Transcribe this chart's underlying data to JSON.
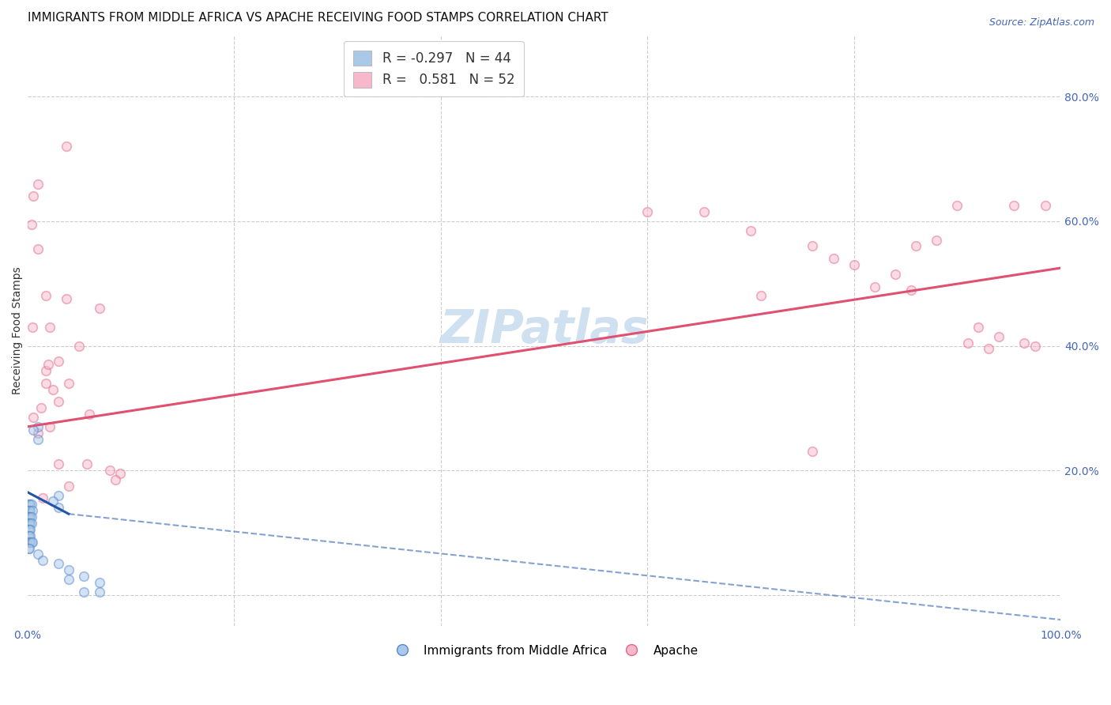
{
  "title": "IMMIGRANTS FROM MIDDLE AFRICA VS APACHE RECEIVING FOOD STAMPS CORRELATION CHART",
  "source": "Source: ZipAtlas.com",
  "ylabel": "Receiving Food Stamps",
  "watermark": "ZIPatlas",
  "xlim": [
    0.0,
    1.0
  ],
  "ylim": [
    -0.05,
    0.9
  ],
  "xtick_vals": [
    0.0,
    0.2,
    0.4,
    0.6,
    0.8,
    1.0
  ],
  "xtick_labels": [
    "0.0%",
    "",
    "",
    "",
    "",
    "100.0%"
  ],
  "ytick_vals": [
    0.0,
    0.2,
    0.4,
    0.6,
    0.8
  ],
  "ytick_labels": [
    "",
    "20.0%",
    "40.0%",
    "60.0%",
    "80.0%"
  ],
  "blue_scatter": [
    [
      0.001,
      0.145
    ],
    [
      0.002,
      0.145
    ],
    [
      0.003,
      0.145
    ],
    [
      0.004,
      0.145
    ],
    [
      0.001,
      0.135
    ],
    [
      0.002,
      0.135
    ],
    [
      0.003,
      0.135
    ],
    [
      0.005,
      0.135
    ],
    [
      0.001,
      0.125
    ],
    [
      0.002,
      0.125
    ],
    [
      0.003,
      0.125
    ],
    [
      0.004,
      0.125
    ],
    [
      0.001,
      0.115
    ],
    [
      0.002,
      0.115
    ],
    [
      0.003,
      0.115
    ],
    [
      0.004,
      0.115
    ],
    [
      0.001,
      0.105
    ],
    [
      0.002,
      0.105
    ],
    [
      0.003,
      0.105
    ],
    [
      0.001,
      0.095
    ],
    [
      0.002,
      0.095
    ],
    [
      0.003,
      0.095
    ],
    [
      0.001,
      0.085
    ],
    [
      0.002,
      0.085
    ],
    [
      0.003,
      0.085
    ],
    [
      0.004,
      0.085
    ],
    [
      0.005,
      0.085
    ],
    [
      0.001,
      0.075
    ],
    [
      0.002,
      0.075
    ],
    [
      0.01,
      0.27
    ],
    [
      0.01,
      0.25
    ],
    [
      0.006,
      0.265
    ],
    [
      0.03,
      0.16
    ],
    [
      0.03,
      0.14
    ],
    [
      0.025,
      0.15
    ],
    [
      0.01,
      0.065
    ],
    [
      0.015,
      0.055
    ],
    [
      0.03,
      0.05
    ],
    [
      0.04,
      0.04
    ],
    [
      0.055,
      0.03
    ],
    [
      0.07,
      0.02
    ],
    [
      0.04,
      0.025
    ],
    [
      0.055,
      0.005
    ],
    [
      0.07,
      0.005
    ]
  ],
  "pink_scatter": [
    [
      0.004,
      0.595
    ],
    [
      0.01,
      0.66
    ],
    [
      0.018,
      0.48
    ],
    [
      0.005,
      0.43
    ],
    [
      0.018,
      0.36
    ],
    [
      0.018,
      0.34
    ],
    [
      0.006,
      0.64
    ],
    [
      0.01,
      0.555
    ],
    [
      0.025,
      0.33
    ],
    [
      0.02,
      0.37
    ],
    [
      0.03,
      0.31
    ],
    [
      0.022,
      0.43
    ],
    [
      0.038,
      0.475
    ],
    [
      0.04,
      0.34
    ],
    [
      0.03,
      0.375
    ],
    [
      0.05,
      0.4
    ],
    [
      0.06,
      0.29
    ],
    [
      0.03,
      0.21
    ],
    [
      0.022,
      0.27
    ],
    [
      0.038,
      0.72
    ],
    [
      0.07,
      0.46
    ],
    [
      0.058,
      0.21
    ],
    [
      0.08,
      0.2
    ],
    [
      0.09,
      0.195
    ],
    [
      0.085,
      0.185
    ],
    [
      0.04,
      0.175
    ],
    [
      0.015,
      0.155
    ],
    [
      0.01,
      0.26
    ],
    [
      0.006,
      0.285
    ],
    [
      0.013,
      0.3
    ],
    [
      0.6,
      0.615
    ],
    [
      0.655,
      0.615
    ],
    [
      0.7,
      0.585
    ],
    [
      0.76,
      0.56
    ],
    [
      0.78,
      0.54
    ],
    [
      0.8,
      0.53
    ],
    [
      0.82,
      0.495
    ],
    [
      0.84,
      0.515
    ],
    [
      0.855,
      0.49
    ],
    [
      0.86,
      0.56
    ],
    [
      0.88,
      0.57
    ],
    [
      0.9,
      0.625
    ],
    [
      0.71,
      0.48
    ],
    [
      0.76,
      0.23
    ],
    [
      0.91,
      0.405
    ],
    [
      0.92,
      0.43
    ],
    [
      0.93,
      0.395
    ],
    [
      0.94,
      0.415
    ],
    [
      0.955,
      0.625
    ],
    [
      0.965,
      0.405
    ],
    [
      0.975,
      0.4
    ],
    [
      0.985,
      0.625
    ]
  ],
  "blue_line_solid": {
    "x0": 0.0,
    "y0": 0.165,
    "x1": 0.04,
    "y1": 0.13
  },
  "blue_line_dashed": {
    "x0": 0.04,
    "y0": 0.13,
    "x1": 1.0,
    "y1": -0.04
  },
  "pink_line": {
    "x0": 0.0,
    "y0": 0.27,
    "x1": 1.0,
    "y1": 0.525
  },
  "background_color": "#ffffff",
  "grid_color": "#cccccc",
  "title_fontsize": 11,
  "ylabel_fontsize": 10,
  "tick_fontsize": 10,
  "watermark_fontsize": 42,
  "watermark_color": "#cfe0f0",
  "scatter_size": 70,
  "scatter_alpha": 0.5,
  "scatter_linewidth": 1.2,
  "blue_scatter_facecolor": "#aac8e8",
  "blue_scatter_edgecolor": "#5588cc",
  "pink_scatter_facecolor": "#f8b8cc",
  "pink_scatter_edgecolor": "#e06888",
  "blue_line_color": "#2255aa",
  "pink_line_color": "#e05070",
  "legend_box_blue": "#aac8e8",
  "legend_box_pink": "#f8b8cc",
  "tick_color": "#4466bb"
}
